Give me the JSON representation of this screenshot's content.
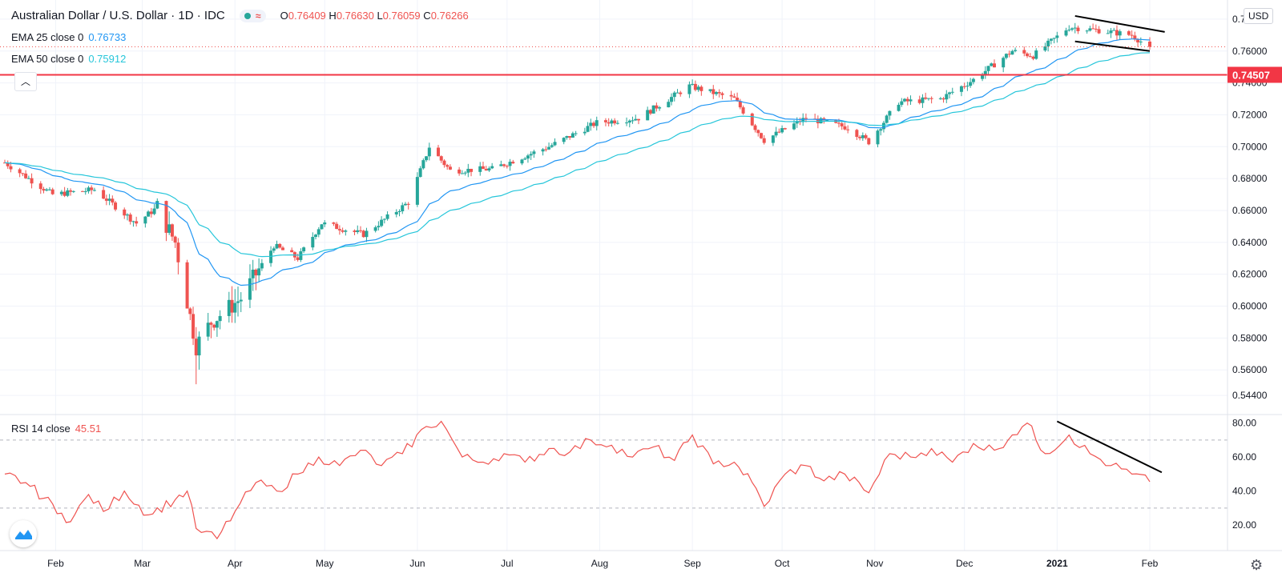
{
  "header": {
    "symbol": "Australian Dollar / U.S. Dollar · 1D · IDC",
    "ohlc": {
      "o_label": "O",
      "o": "0.76409",
      "h_label": "H",
      "h": "0.76630",
      "l_label": "L",
      "l": "0.76059",
      "c_label": "C",
      "c": "0.76266"
    },
    "badge_wave": "≈"
  },
  "indicators": {
    "ema25": {
      "label": "EMA 25 close 0",
      "value": "0.76733",
      "color": "#2196f3"
    },
    "ema50": {
      "label": "EMA 50 close 0",
      "value": "0.75912",
      "color": "#26c6da"
    },
    "rsi": {
      "label": "RSI 14 close",
      "value": "45.51",
      "color": "#ef5350"
    }
  },
  "currency_button": "USD",
  "collapse_icon": "chevron-up-icon",
  "colors": {
    "up": "#26a69a",
    "down": "#ef5350",
    "ema25": "#2196f3",
    "ema50": "#26c6da",
    "support": "#f23645",
    "rsi": "#ef5350"
  },
  "chart_data": [
    {
      "type": "candlestick",
      "title": "Australian Dollar / U.S. Dollar · 1D · IDC",
      "ylim": [
        0.532,
        0.792
      ],
      "y_ticks": [
        "0.54400",
        "0.56000",
        "0.58000",
        "0.60000",
        "0.62000",
        "0.64000",
        "0.66000",
        "0.68000",
        "0.70000",
        "0.72000",
        "0.74000",
        "0.76000",
        "0.78000"
      ],
      "x_ticks": [
        "Feb",
        "Mar",
        "Apr",
        "May",
        "Jun",
        "Jul",
        "Aug",
        "Sep",
        "Oct",
        "Nov",
        "Dec",
        "2021",
        "Feb"
      ],
      "support_level": {
        "value": 0.74507,
        "label": "0.74507"
      },
      "last_price": 0.76266,
      "price_anchors": [
        [
          "2020-01-15",
          0.69
        ],
        [
          "2020-01-31",
          0.67
        ],
        [
          "2020-02-14",
          0.673
        ],
        [
          "2020-02-28",
          0.652
        ],
        [
          "2020-03-06",
          0.662
        ],
        [
          "2020-03-12",
          0.64
        ],
        [
          "2020-03-19",
          0.575
        ],
        [
          "2020-03-24",
          0.59
        ],
        [
          "2020-04-03",
          0.605
        ],
        [
          "2020-04-14",
          0.638
        ],
        [
          "2020-04-22",
          0.63
        ],
        [
          "2020-04-30",
          0.652
        ],
        [
          "2020-05-14",
          0.645
        ],
        [
          "2020-05-29",
          0.665
        ],
        [
          "2020-06-05",
          0.7
        ],
        [
          "2020-06-12",
          0.685
        ],
        [
          "2020-06-26",
          0.686
        ],
        [
          "2020-07-15",
          0.7
        ],
        [
          "2020-07-31",
          0.715
        ],
        [
          "2020-08-14",
          0.718
        ],
        [
          "2020-08-31",
          0.738
        ],
        [
          "2020-09-15",
          0.73
        ],
        [
          "2020-09-25",
          0.704
        ],
        [
          "2020-10-09",
          0.718
        ],
        [
          "2020-10-23",
          0.712
        ],
        [
          "2020-10-30",
          0.703
        ],
        [
          "2020-11-09",
          0.728
        ],
        [
          "2020-11-23",
          0.73
        ],
        [
          "2020-12-04",
          0.742
        ],
        [
          "2020-12-17",
          0.76
        ],
        [
          "2020-12-24",
          0.757
        ],
        [
          "2021-01-05",
          0.775
        ],
        [
          "2021-01-15",
          0.773
        ],
        [
          "2021-01-26",
          0.77
        ],
        [
          "2021-02-01",
          0.762
        ]
      ],
      "channel_upper": [
        [
          "2021-01-07",
          0.782
        ],
        [
          "2021-02-06",
          0.772
        ]
      ],
      "channel_lower": [
        [
          "2021-01-07",
          0.766
        ],
        [
          "2021-02-01",
          0.76
        ]
      ]
    },
    {
      "type": "line",
      "title": "RSI 14 close",
      "ylim": [
        5,
        85
      ],
      "y_ticks": [
        "20.00",
        "40.00",
        "60.00",
        "80.00"
      ],
      "levels": [
        30,
        70
      ],
      "values": [
        [
          "2020-01-15",
          50
        ],
        [
          "2020-01-22",
          45
        ],
        [
          "2020-02-03",
          27
        ],
        [
          "2020-02-06",
          22
        ],
        [
          "2020-02-12",
          38
        ],
        [
          "2020-02-17",
          28
        ],
        [
          "2020-02-24",
          40
        ],
        [
          "2020-03-03",
          26
        ],
        [
          "2020-03-12",
          35
        ],
        [
          "2020-03-16",
          40
        ],
        [
          "2020-03-19",
          18
        ],
        [
          "2020-03-26",
          12
        ],
        [
          "2020-04-01",
          28
        ],
        [
          "2020-04-08",
          45
        ],
        [
          "2020-04-15",
          40
        ],
        [
          "2020-04-22",
          50
        ],
        [
          "2020-04-29",
          60
        ],
        [
          "2020-05-06",
          55
        ],
        [
          "2020-05-13",
          64
        ],
        [
          "2020-05-20",
          55
        ],
        [
          "2020-05-27",
          62
        ],
        [
          "2020-06-04",
          78
        ],
        [
          "2020-06-09",
          81
        ],
        [
          "2020-06-16",
          60
        ],
        [
          "2020-06-23",
          57
        ],
        [
          "2020-06-30",
          62
        ],
        [
          "2020-07-07",
          57
        ],
        [
          "2020-07-15",
          65
        ],
        [
          "2020-07-22",
          63
        ],
        [
          "2020-07-29",
          70
        ],
        [
          "2020-08-05",
          67
        ],
        [
          "2020-08-12",
          60
        ],
        [
          "2020-08-19",
          66
        ],
        [
          "2020-08-26",
          58
        ],
        [
          "2020-09-01",
          73
        ],
        [
          "2020-09-08",
          56
        ],
        [
          "2020-09-15",
          57
        ],
        [
          "2020-09-21",
          45
        ],
        [
          "2020-09-25",
          31
        ],
        [
          "2020-10-02",
          50
        ],
        [
          "2020-10-09",
          55
        ],
        [
          "2020-10-15",
          46
        ],
        [
          "2020-10-22",
          50
        ],
        [
          "2020-10-30",
          39
        ],
        [
          "2020-11-06",
          62
        ],
        [
          "2020-11-13",
          60
        ],
        [
          "2020-11-20",
          65
        ],
        [
          "2020-11-27",
          57
        ],
        [
          "2020-12-04",
          68
        ],
        [
          "2020-12-11",
          64
        ],
        [
          "2020-12-17",
          73
        ],
        [
          "2020-12-22",
          80
        ],
        [
          "2020-12-28",
          62
        ],
        [
          "2021-01-05",
          73
        ],
        [
          "2021-01-12",
          62
        ],
        [
          "2021-01-19",
          55
        ],
        [
          "2021-01-26",
          50
        ],
        [
          "2021-02-01",
          45.51
        ]
      ],
      "trendline": [
        [
          "2021-01-01",
          81
        ],
        [
          "2021-02-05",
          51
        ]
      ]
    }
  ]
}
